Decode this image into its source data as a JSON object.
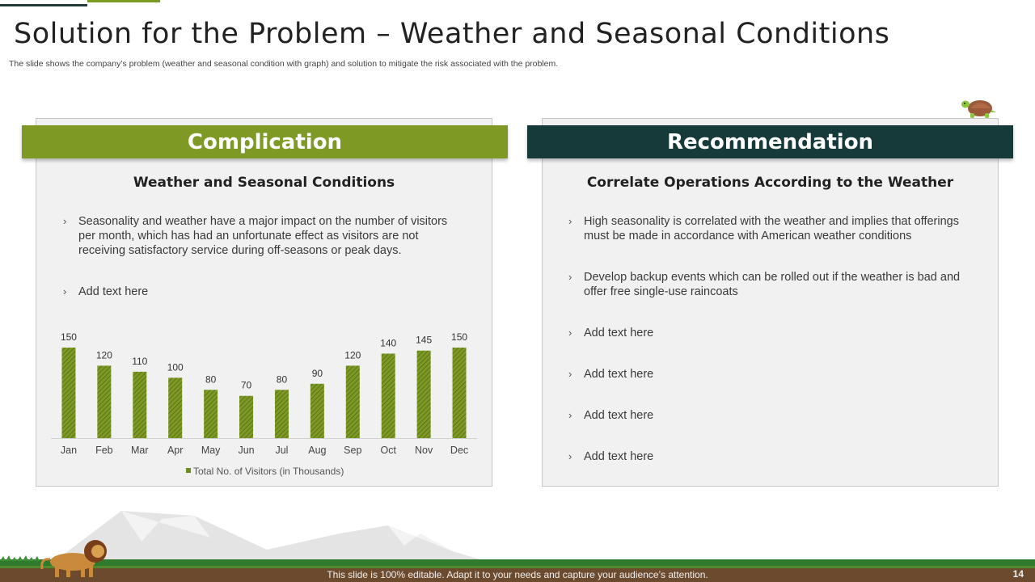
{
  "slide": {
    "title": "Solution for the Problem – Weather and Seasonal Conditions",
    "subtitle": "The slide shows the company’s problem (weather and seasonal condition with graph) and solution to mitigate the risk associated with the problem.",
    "footer": "This slide is 100% editable. Adapt it to your needs and capture your audience’s attention.",
    "page_number": "14"
  },
  "left_panel": {
    "banner": "Complication",
    "heading": "Weather and Seasonal Conditions",
    "bullets": [
      "Seasonality and weather have a major impact on the number of visitors per month, which has had an unfortunate effect as visitors are not receiving satisfactory service during off-seasons or peak days.",
      "Add text here"
    ]
  },
  "right_panel": {
    "banner": "Recommendation",
    "heading": "Correlate Operations According to the Weather",
    "bullets": [
      "High seasonality is correlated with the weather and implies that offerings must be made in accordance with American weather conditions",
      "Develop backup events which can be rolled out if the weather is bad and offer free single-use raincoats",
      "Add text here",
      "Add text here",
      "Add text here",
      "Add text here"
    ]
  },
  "colors": {
    "accent_green": "#7e9a25",
    "accent_dark": "#163a3a",
    "bar_green": "#6b8e23"
  },
  "chart_data": {
    "type": "bar",
    "categories": [
      "Jan",
      "Feb",
      "Mar",
      "Apr",
      "May",
      "Jun",
      "Jul",
      "Aug",
      "Sep",
      "Oct",
      "Nov",
      "Dec"
    ],
    "series": [
      {
        "name": "Total No. of Visitors (in Thousands)",
        "values": [
          150,
          120,
          110,
          100,
          80,
          70,
          80,
          90,
          120,
          140,
          145,
          150
        ]
      }
    ],
    "ylim": [
      0,
      150
    ],
    "grid": false,
    "legend": "bottom",
    "data_labels": true
  }
}
